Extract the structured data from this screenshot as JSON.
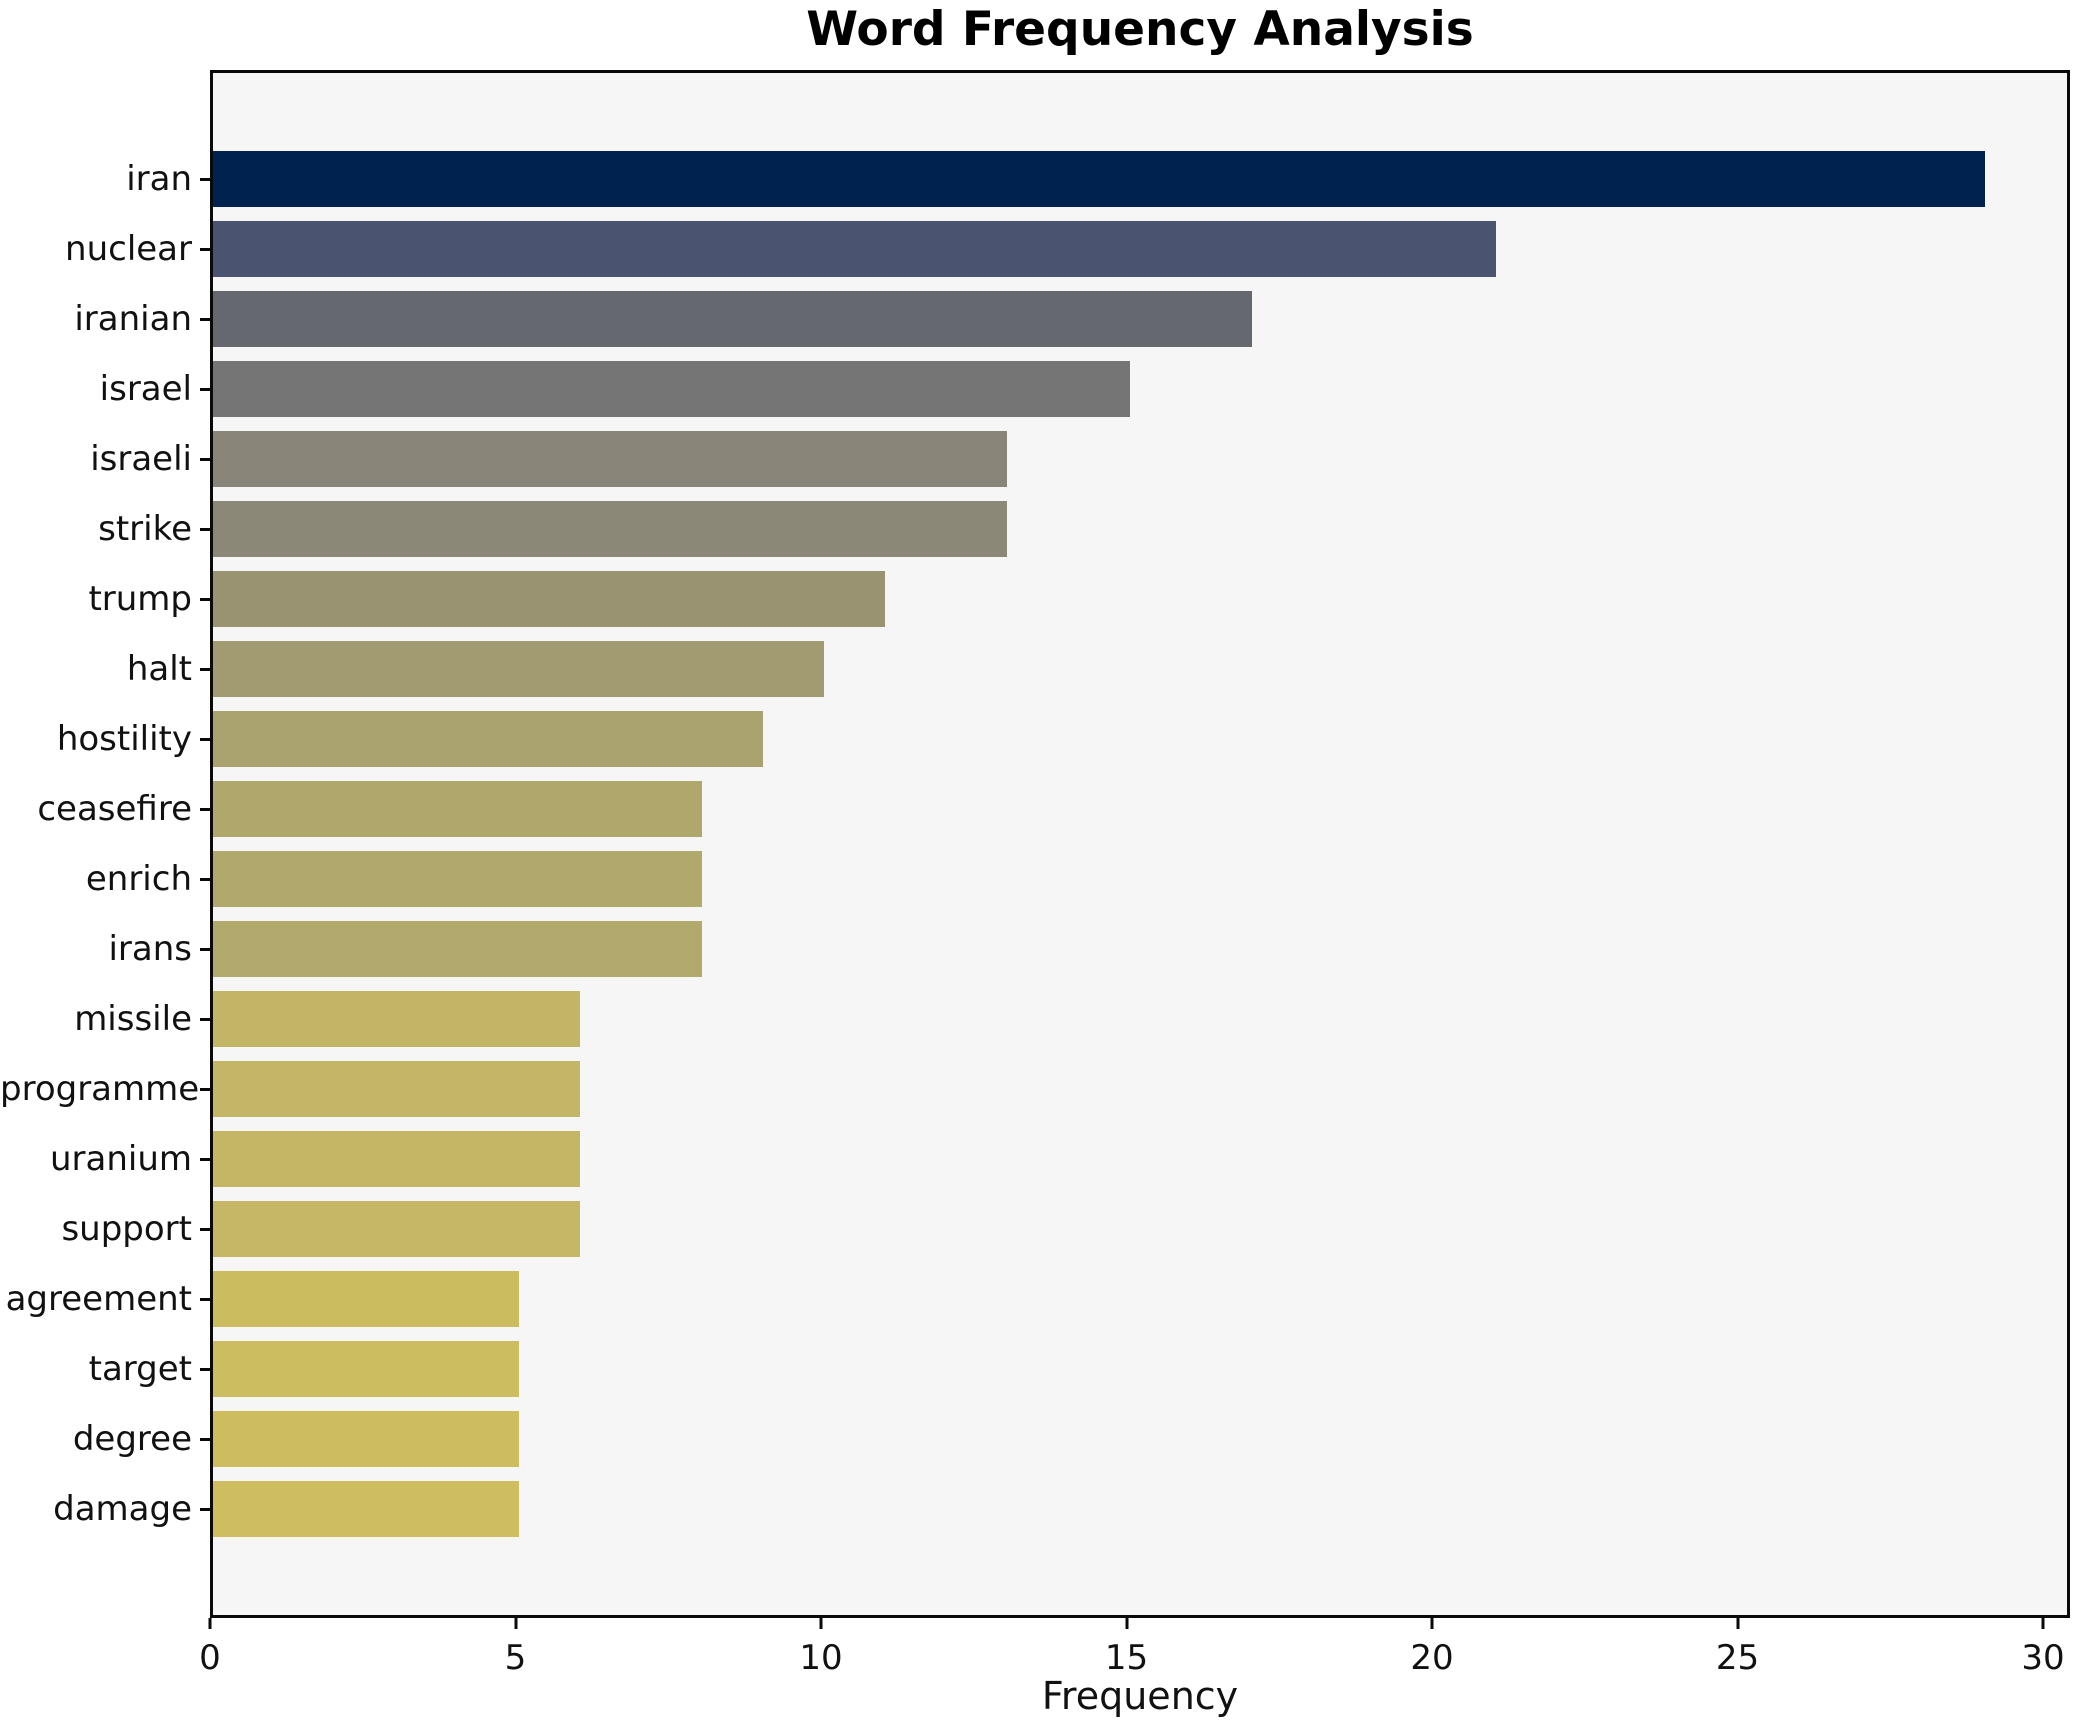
{
  "chart_data": {
    "type": "bar",
    "orientation": "horizontal",
    "title": "Word Frequency Analysis",
    "xlabel": "Frequency",
    "ylabel": "",
    "categories": [
      "iran",
      "nuclear",
      "iranian",
      "israel",
      "israeli",
      "strike",
      "trump",
      "halt",
      "hostility",
      "ceasefire",
      "enrich",
      "irans",
      "missile",
      "programme",
      "uranium",
      "support",
      "agreement",
      "target",
      "degree",
      "damage"
    ],
    "values": [
      29,
      21,
      17,
      15,
      13,
      13,
      11,
      10,
      9,
      8,
      8,
      8,
      6,
      6,
      6,
      6,
      5,
      5,
      5,
      5
    ],
    "bar_colors": [
      "#00224e",
      "#4a5470",
      "#666870",
      "#757575",
      "#898679",
      "#8b8878",
      "#9a9371",
      "#a29a70",
      "#aaa26f",
      "#b0a76c",
      "#b1a86c",
      "#b2a96c",
      "#c2b566",
      "#c3b666",
      "#c4b665",
      "#c5b765",
      "#cbbc60",
      "#ccbd60",
      "#cdbd5f",
      "#cebe5f"
    ],
    "x_ticks": [
      0,
      5,
      10,
      15,
      20,
      25,
      30
    ],
    "xlim": [
      0,
      30
    ],
    "grid": false,
    "legend": "none",
    "plot_background": "#f6f6f7",
    "outer_background": "#ffffff",
    "spine_color": "#0a0a0a",
    "text_color": "#111111"
  }
}
